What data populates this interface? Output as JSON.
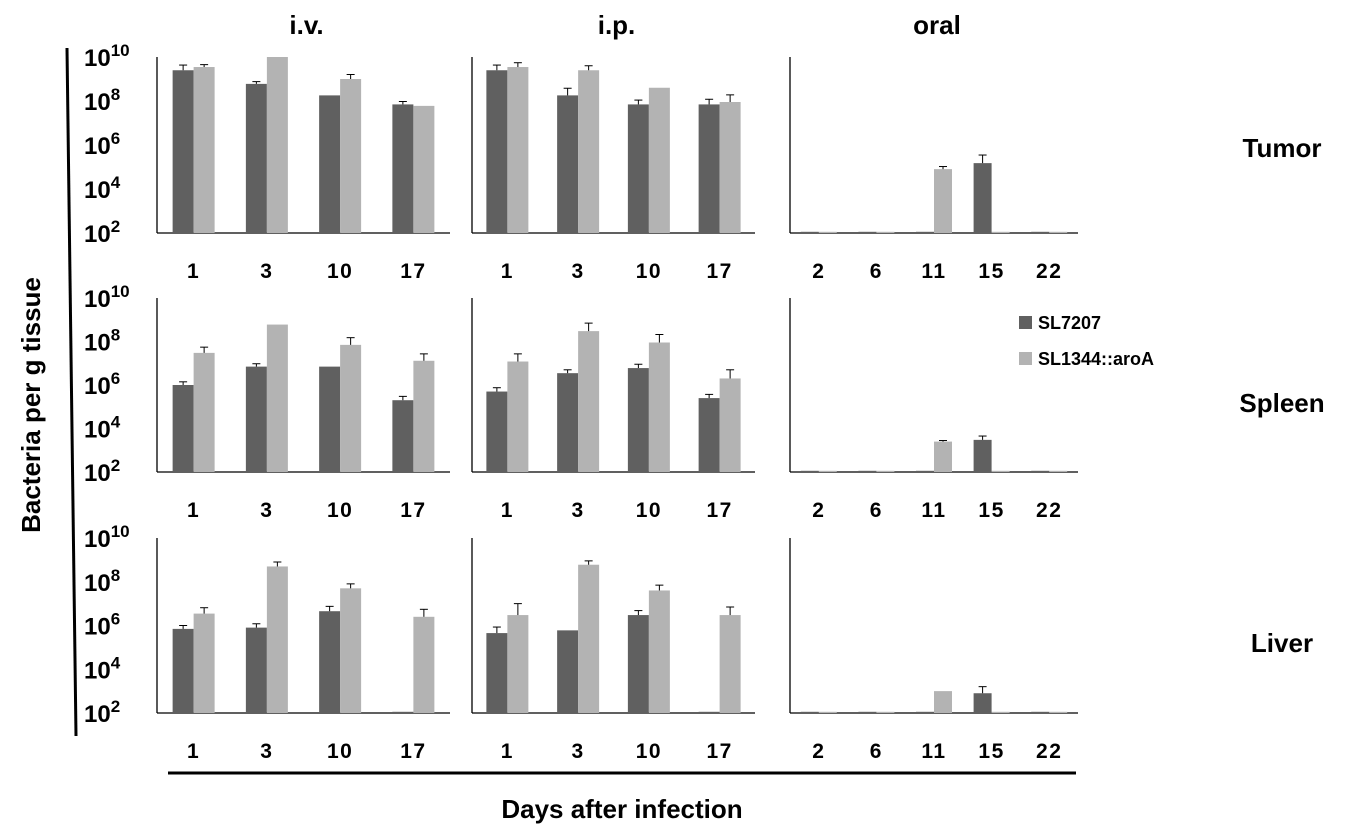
{
  "ylabel": "Bacteria per g tissue",
  "xlabel": "Days after infection",
  "columns": [
    "i.v.",
    "i.p.",
    "oral"
  ],
  "rows": [
    "Tumor",
    "Spleen",
    "Liver"
  ],
  "yticks": [
    {
      "base": "10",
      "exp": "10"
    },
    {
      "base": "10",
      "exp": "8"
    },
    {
      "base": "10",
      "exp": "6"
    },
    {
      "base": "10",
      "exp": "4"
    },
    {
      "base": "10",
      "exp": "2"
    }
  ],
  "legend": [
    {
      "name": "SL7207",
      "color": "#606060"
    },
    {
      "name": "SL1344::aroA",
      "color": "#b3b3b3"
    }
  ],
  "chart_data": {
    "type": "bar",
    "yscale": "log10",
    "ylim": [
      100,
      10000000000
    ],
    "series_names": [
      "SL7207",
      "SL1344::aroA"
    ],
    "series_colors": [
      "#606060",
      "#b3b3b3"
    ],
    "panels": [
      {
        "row": "Tumor",
        "route": "i.v.",
        "categories": [
          "1",
          "3",
          "10",
          "17"
        ],
        "SL7207": [
          2500000000.0,
          600000000.0,
          180000000.0,
          70000000.0
        ],
        "SL7207_err": [
          1800000000.0,
          160000000.0,
          0,
          25000000.0
        ],
        "SL1344::aroA": [
          3500000000.0,
          10000000000.0,
          1000000000.0,
          60000000.0
        ],
        "SL1344::aroA_err": [
          1000000000.0,
          0,
          600000000.0,
          0
        ]
      },
      {
        "row": "Tumor",
        "route": "i.p.",
        "categories": [
          "1",
          "3",
          "10",
          "17"
        ],
        "SL7207": [
          2500000000.0,
          180000000.0,
          70000000.0,
          70000000.0
        ],
        "SL7207_err": [
          1800000000.0,
          200000000.0,
          40000000.0,
          50000000.0
        ],
        "SL1344::aroA": [
          3500000000.0,
          2500000000.0,
          400000000.0,
          90000000.0
        ],
        "SL1344::aroA_err": [
          2000000000.0,
          1500000000.0,
          0,
          100000000.0
        ]
      },
      {
        "row": "Tumor",
        "route": "oral",
        "categories": [
          "2",
          "6",
          "11",
          "15",
          "22"
        ],
        "SL7207": [
          100,
          100,
          100,
          150000.0,
          100
        ],
        "SL7207_err": [
          0,
          0,
          0,
          200000.0,
          0
        ],
        "SL1344::aroA": [
          100,
          100,
          80000.0,
          100,
          100
        ],
        "SL1344::aroA_err": [
          0,
          0,
          25000.0,
          0,
          0
        ]
      },
      {
        "row": "Spleen",
        "route": "i.v.",
        "categories": [
          "1",
          "3",
          "10",
          "17"
        ],
        "SL7207": [
          1000000.0,
          7000000.0,
          7000000.0,
          200000.0
        ],
        "SL7207_err": [
          400000.0,
          2500000.0,
          0,
          100000.0
        ],
        "SL1344::aroA": [
          30000000.0,
          600000000.0,
          70000000.0,
          13000000.0
        ],
        "SL1344::aroA_err": [
          25000000.0,
          0,
          80000000.0,
          14000000.0
        ]
      },
      {
        "row": "Spleen",
        "route": "i.p.",
        "categories": [
          "1",
          "3",
          "10",
          "17"
        ],
        "SL7207": [
          500000.0,
          3500000.0,
          6000000.0,
          250000.0
        ],
        "SL7207_err": [
          250000.0,
          1500000.0,
          3000000.0,
          120000.0
        ],
        "SL1344::aroA": [
          12000000.0,
          300000000.0,
          90000000.0,
          2000000.0
        ],
        "SL1344::aroA_err": [
          15000000.0,
          400000000.0,
          120000000.0,
          3000000.0
        ]
      },
      {
        "row": "Spleen",
        "route": "oral",
        "categories": [
          "2",
          "6",
          "11",
          "15",
          "22"
        ],
        "SL7207": [
          100,
          100,
          100,
          3000.0,
          100
        ],
        "SL7207_err": [
          0,
          0,
          0,
          1500.0,
          0
        ],
        "SL1344::aroA": [
          100,
          100,
          2500.0,
          100,
          100
        ],
        "SL1344::aroA_err": [
          0,
          0,
          300.0,
          0,
          0
        ]
      },
      {
        "row": "Liver",
        "route": "i.v.",
        "categories": [
          "1",
          "3",
          "10",
          "17"
        ],
        "SL7207": [
          700000.0,
          800000.0,
          4500000.0,
          100
        ],
        "SL7207_err": [
          300000.0,
          400000.0,
          3000000.0,
          0
        ],
        "SL1344::aroA": [
          3500000.0,
          500000000.0,
          50000000.0,
          2500000.0
        ],
        "SL1344::aroA_err": [
          3000000.0,
          300000000.0,
          30000000.0,
          3000000.0
        ]
      },
      {
        "row": "Liver",
        "route": "i.p.",
        "categories": [
          "1",
          "3",
          "10",
          "17"
        ],
        "SL7207": [
          450000.0,
          600000.0,
          3000000.0,
          100
        ],
        "SL7207_err": [
          400000.0,
          0,
          1800000.0,
          0
        ],
        "SL1344::aroA": [
          3000000.0,
          600000000.0,
          40000000.0,
          3000000.0
        ],
        "SL1344::aroA_err": [
          7000000.0,
          300000000.0,
          30000000.0,
          4000000.0
        ]
      },
      {
        "row": "Liver",
        "route": "oral",
        "categories": [
          "2",
          "6",
          "11",
          "15",
          "22"
        ],
        "SL7207": [
          100,
          100,
          100,
          800,
          100
        ],
        "SL7207_err": [
          0,
          0,
          0,
          800,
          0
        ],
        "SL1344::aroA": [
          100,
          100,
          1000,
          100,
          100
        ],
        "SL1344::aroA_err": [
          0,
          0,
          0,
          0,
          0
        ]
      }
    ]
  }
}
